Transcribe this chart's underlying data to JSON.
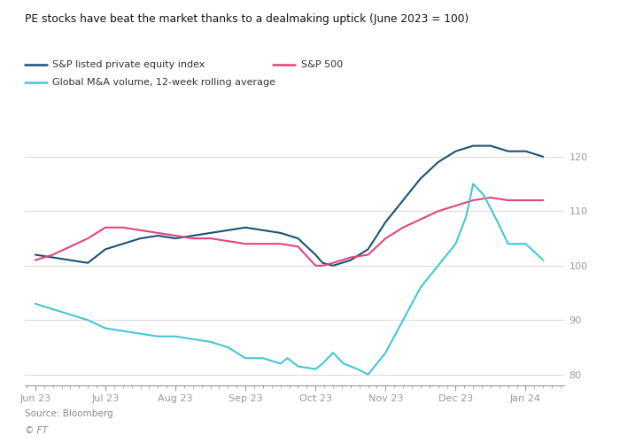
{
  "title": "PE stocks have beat the market thanks to a dealmaking uptick (June 2023 = 100)",
  "source": "Source: Bloomberg",
  "copyright": "© FT",
  "legend": [
    {
      "label": "S&P listed private equity index",
      "color": "#1a5276",
      "lw": 1.5
    },
    {
      "label": "S&P 500",
      "color": "#e0457b",
      "lw": 1.5
    },
    {
      "label": "Global M&A volume, 12-week rolling average",
      "color": "#45c6d6",
      "lw": 1.5
    }
  ],
  "x_labels": [
    "Jun 23",
    "Jul 23",
    "Aug 23",
    "Sep 23",
    "Oct 23",
    "Nov 23",
    "Dec 23",
    "Jan 24"
  ],
  "x_ticks": [
    0,
    1,
    2,
    3,
    4,
    5,
    6,
    7
  ],
  "ylim": [
    78,
    126
  ],
  "yticks": [
    80,
    90,
    100,
    110,
    120
  ],
  "background_color": "#ffffff",
  "text_color": "#333333",
  "grid_color": "#dddddd",
  "tick_color": "#999999",
  "pe_x": [
    0,
    0.25,
    0.5,
    0.75,
    1.0,
    1.25,
    1.5,
    1.75,
    2.0,
    2.25,
    2.5,
    2.75,
    3.0,
    3.25,
    3.5,
    3.75,
    4.0,
    4.1,
    4.25,
    4.5,
    4.75,
    5.0,
    5.25,
    5.5,
    5.75,
    6.0,
    6.25,
    6.5,
    6.75,
    7.0,
    7.25
  ],
  "pe_y": [
    102,
    101.5,
    101,
    100.5,
    103,
    104,
    105,
    105.5,
    105,
    105.5,
    106,
    106.5,
    107,
    106.5,
    106,
    105,
    102,
    100.5,
    100,
    101,
    103,
    108,
    112,
    116,
    119,
    121,
    122,
    122,
    121,
    121,
    120
  ],
  "sp_x": [
    0,
    0.25,
    0.5,
    0.75,
    1.0,
    1.25,
    1.5,
    1.75,
    2.0,
    2.25,
    2.5,
    2.75,
    3.0,
    3.25,
    3.5,
    3.75,
    4.0,
    4.1,
    4.25,
    4.5,
    4.75,
    5.0,
    5.25,
    5.5,
    5.75,
    6.0,
    6.25,
    6.5,
    6.75,
    7.0,
    7.25
  ],
  "sp_y": [
    101,
    102,
    103.5,
    105,
    107,
    107,
    106.5,
    106,
    105.5,
    105,
    105,
    104.5,
    104,
    104,
    104,
    103.5,
    100,
    100,
    100.5,
    101.5,
    102,
    105,
    107,
    108.5,
    110,
    111,
    112,
    112.5,
    112,
    112,
    112
  ],
  "mna_x": [
    0,
    0.25,
    0.5,
    0.75,
    1.0,
    1.25,
    1.5,
    1.75,
    2.0,
    2.25,
    2.5,
    2.75,
    3.0,
    3.25,
    3.5,
    3.6,
    3.75,
    4.0,
    4.1,
    4.25,
    4.4,
    4.6,
    4.75,
    5.0,
    5.25,
    5.5,
    5.75,
    6.0,
    6.15,
    6.25,
    6.4,
    6.6,
    6.75,
    7.0,
    7.25
  ],
  "mna_y": [
    93,
    92,
    91,
    90,
    88.5,
    88,
    87.5,
    87,
    87,
    86.5,
    86,
    85,
    83,
    83,
    82,
    83,
    81.5,
    81,
    82,
    84,
    82,
    81,
    80,
    84,
    90,
    96,
    100,
    104,
    109,
    115,
    113,
    108,
    104,
    104,
    101
  ]
}
